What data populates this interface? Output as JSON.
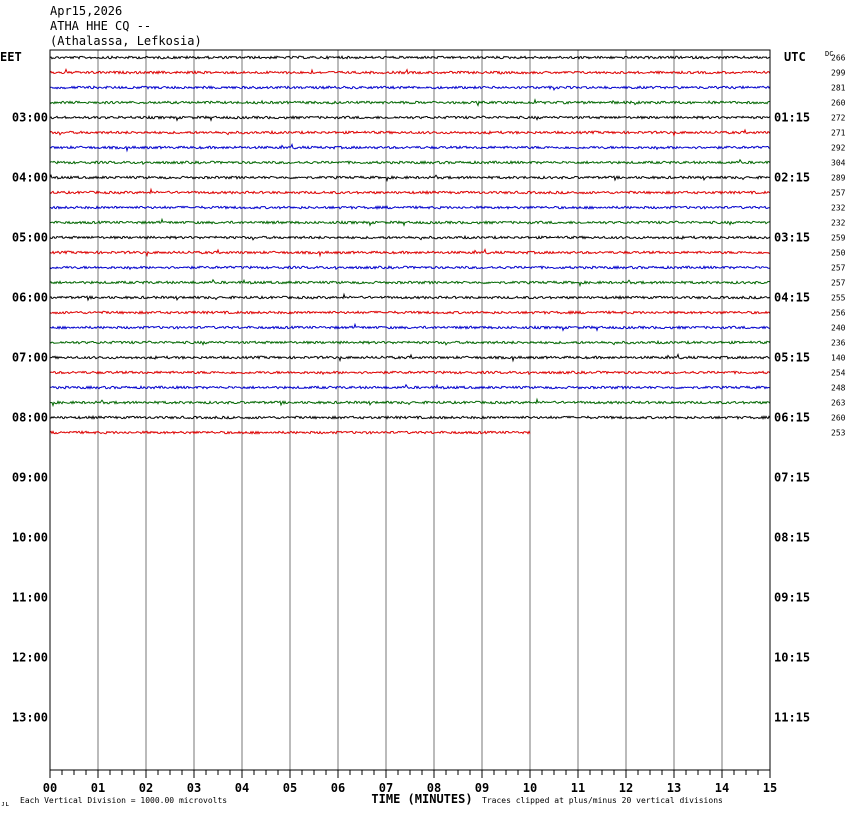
{
  "header": {
    "date": "Apr15,2026",
    "station": "ATHA HHE CQ --",
    "location": "(Athalassa, Lefkosia)"
  },
  "labels": {
    "left_zone": "EET",
    "right_zone": "UTC",
    "dc_header": "DC",
    "x_axis_title": "TIME (MINUTES)",
    "scale_note": "Each Vertical Division = 1000.00 microvolts",
    "clip_note": "Traces clipped at plus/minus 20 vertical divisions",
    "corner_mark": "ᴊʟ"
  },
  "chart_data": {
    "type": "line",
    "subtype": "helicorder",
    "x_ticks": [
      "00",
      "01",
      "02",
      "03",
      "04",
      "05",
      "06",
      "07",
      "08",
      "09",
      "10",
      "11",
      "12",
      "13",
      "14",
      "15"
    ],
    "xlim": [
      0,
      15
    ],
    "left_hour_labels": [
      "03:00",
      "04:00",
      "05:00",
      "06:00",
      "07:00",
      "08:00",
      "09:00",
      "10:00",
      "11:00",
      "12:00",
      "13:00"
    ],
    "right_hour_labels": [
      "01:15",
      "02:15",
      "03:15",
      "04:15",
      "05:15",
      "06:15",
      "07:15",
      "08:15",
      "09:15",
      "10:15",
      "11:15"
    ],
    "trace_colors": [
      "#000000",
      "#dd0000",
      "#0000cc",
      "#006600"
    ],
    "dc_values": [
      266,
      299,
      281,
      260,
      272,
      271,
      292,
      304,
      289,
      257,
      232,
      232,
      259,
      250,
      257,
      257,
      255,
      256,
      240,
      236,
      140,
      254,
      248,
      263,
      260,
      253
    ],
    "last_trace_end_minute": 10,
    "grid": "vertical lines every minute"
  }
}
